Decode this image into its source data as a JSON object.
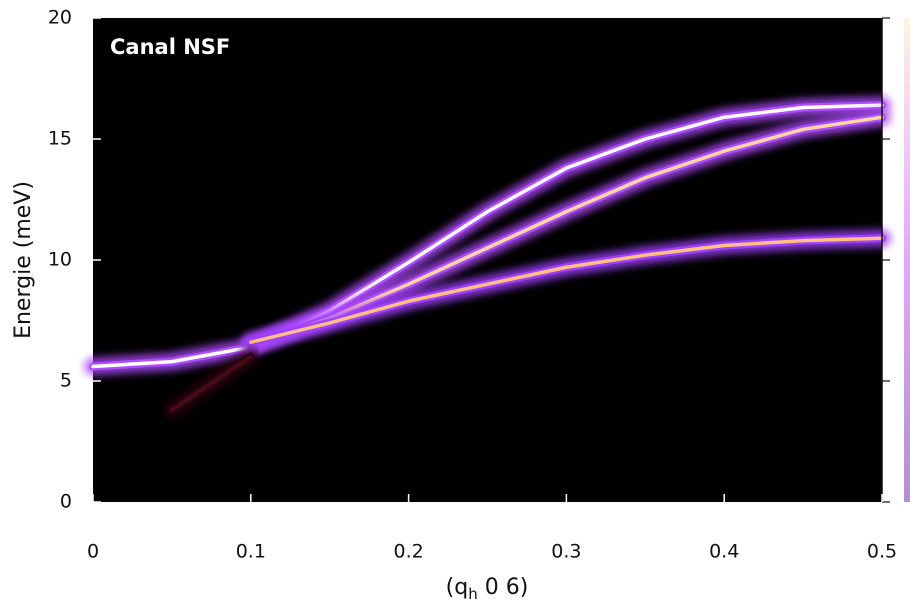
{
  "chart_data": {
    "type": "line",
    "annotation": "Canal NSF",
    "xlabel": {
      "text": "(q",
      "sub": "h",
      "rest": " 0 6)"
    },
    "ylabel": "Energie (meV)",
    "x": [
      0,
      0.05,
      0.1,
      0.15,
      0.2,
      0.25,
      0.3,
      0.35,
      0.4,
      0.45,
      0.5
    ],
    "series": [
      {
        "color": "#ffffff",
        "glow": "#b04cff",
        "values": [
          5.6,
          5.8,
          6.4,
          7.9,
          9.9,
          12.0,
          13.8,
          15.0,
          15.9,
          16.3,
          16.4
        ]
      },
      {
        "color": "#ffd9a0",
        "glow": "#b04cff",
        "values": [
          null,
          null,
          6.5,
          7.6,
          9.0,
          10.5,
          12.0,
          13.4,
          14.5,
          15.4,
          15.9
        ]
      },
      {
        "color": "#ffc080",
        "glow": "#a040ff",
        "values": [
          null,
          null,
          6.6,
          7.4,
          8.3,
          9.0,
          9.7,
          10.2,
          10.6,
          10.8,
          10.9
        ]
      },
      {
        "color": "#4a0c14",
        "glow": "#2a0610",
        "values": [
          null,
          3.8,
          6.0,
          null,
          null,
          null,
          null,
          null,
          null,
          null,
          null
        ]
      }
    ],
    "xlim": [
      0,
      0.5
    ],
    "ylim": [
      0,
      20
    ],
    "xticks": [
      0,
      0.1,
      0.2,
      0.3,
      0.4,
      0.5
    ],
    "yticks": [
      0,
      5,
      10,
      15,
      20
    ],
    "background": "#000000"
  }
}
